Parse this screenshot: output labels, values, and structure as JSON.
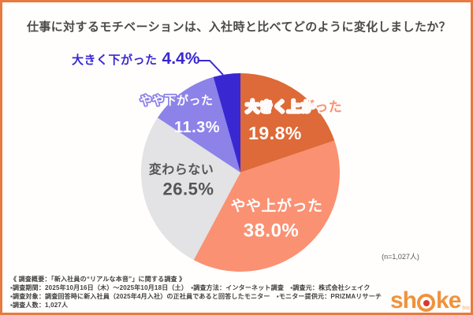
{
  "title": "仕事に対するモチベーションは、入社時と比べてどのように変化しましたか？",
  "chart_data": {
    "type": "pie",
    "title": "仕事に対するモチベーションは、入社時と比べてどのように変化しましたか？",
    "start_angle_deg": 0,
    "direction": "clockwise",
    "legend_position": "labels-on-slices",
    "slices": [
      {
        "label": "大きく上がった",
        "value": 19.8,
        "pct_display": "19.8%",
        "color": "#DD6A38",
        "label_color": "#FFFFFF"
      },
      {
        "label": "やや上がった",
        "value": 38.0,
        "pct_display": "38.0%",
        "color": "#FA9173",
        "label_color": "#FFFFFF"
      },
      {
        "label": "変わらない",
        "value": 26.5,
        "pct_display": "26.5%",
        "color": "#E3E2E4",
        "label_color": "#555555"
      },
      {
        "label": "やや下がった",
        "value": 11.3,
        "pct_display": "11.3%",
        "color": "#8C82E8",
        "label_color": "#FFFFFF"
      },
      {
        "label": "大きく下がった",
        "value": 4.4,
        "pct_display": "4.4%",
        "color": "#3928D2",
        "label_color": "#3928D2",
        "callout": true
      }
    ],
    "sample_note": "(n=1,027人)"
  },
  "footer": {
    "lines": [
      "《 調査概要：「新入社員の“リアルな本音”」に関する調査 》",
      "▪調査期間：2025年10月16日（木）～2025年10月18日（土）　▪調査方法：インターネット調査　▪調査元：株式会社シェイク",
      "▪調査対象：調査回答時に新入社員（2025年4月入社）の正社員であると回答したモニター　▪モニター提供元：PRIZMAリサーチ",
      "▪調査人数：1,027人"
    ]
  },
  "logo": {
    "brand": "shake",
    "parts": [
      "sh",
      "ke"
    ],
    "suffix": "Inc."
  }
}
